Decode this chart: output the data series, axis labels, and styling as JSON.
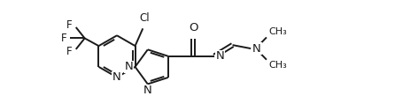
{
  "bg_color": "#ffffff",
  "line_color": "#1a1a1a",
  "line_width": 1.4,
  "font_size": 8.5,
  "fig_width": 4.46,
  "fig_height": 1.26,
  "dpi": 100,
  "xlim": [
    0,
    11
  ],
  "ylim": [
    0,
    3.15
  ]
}
